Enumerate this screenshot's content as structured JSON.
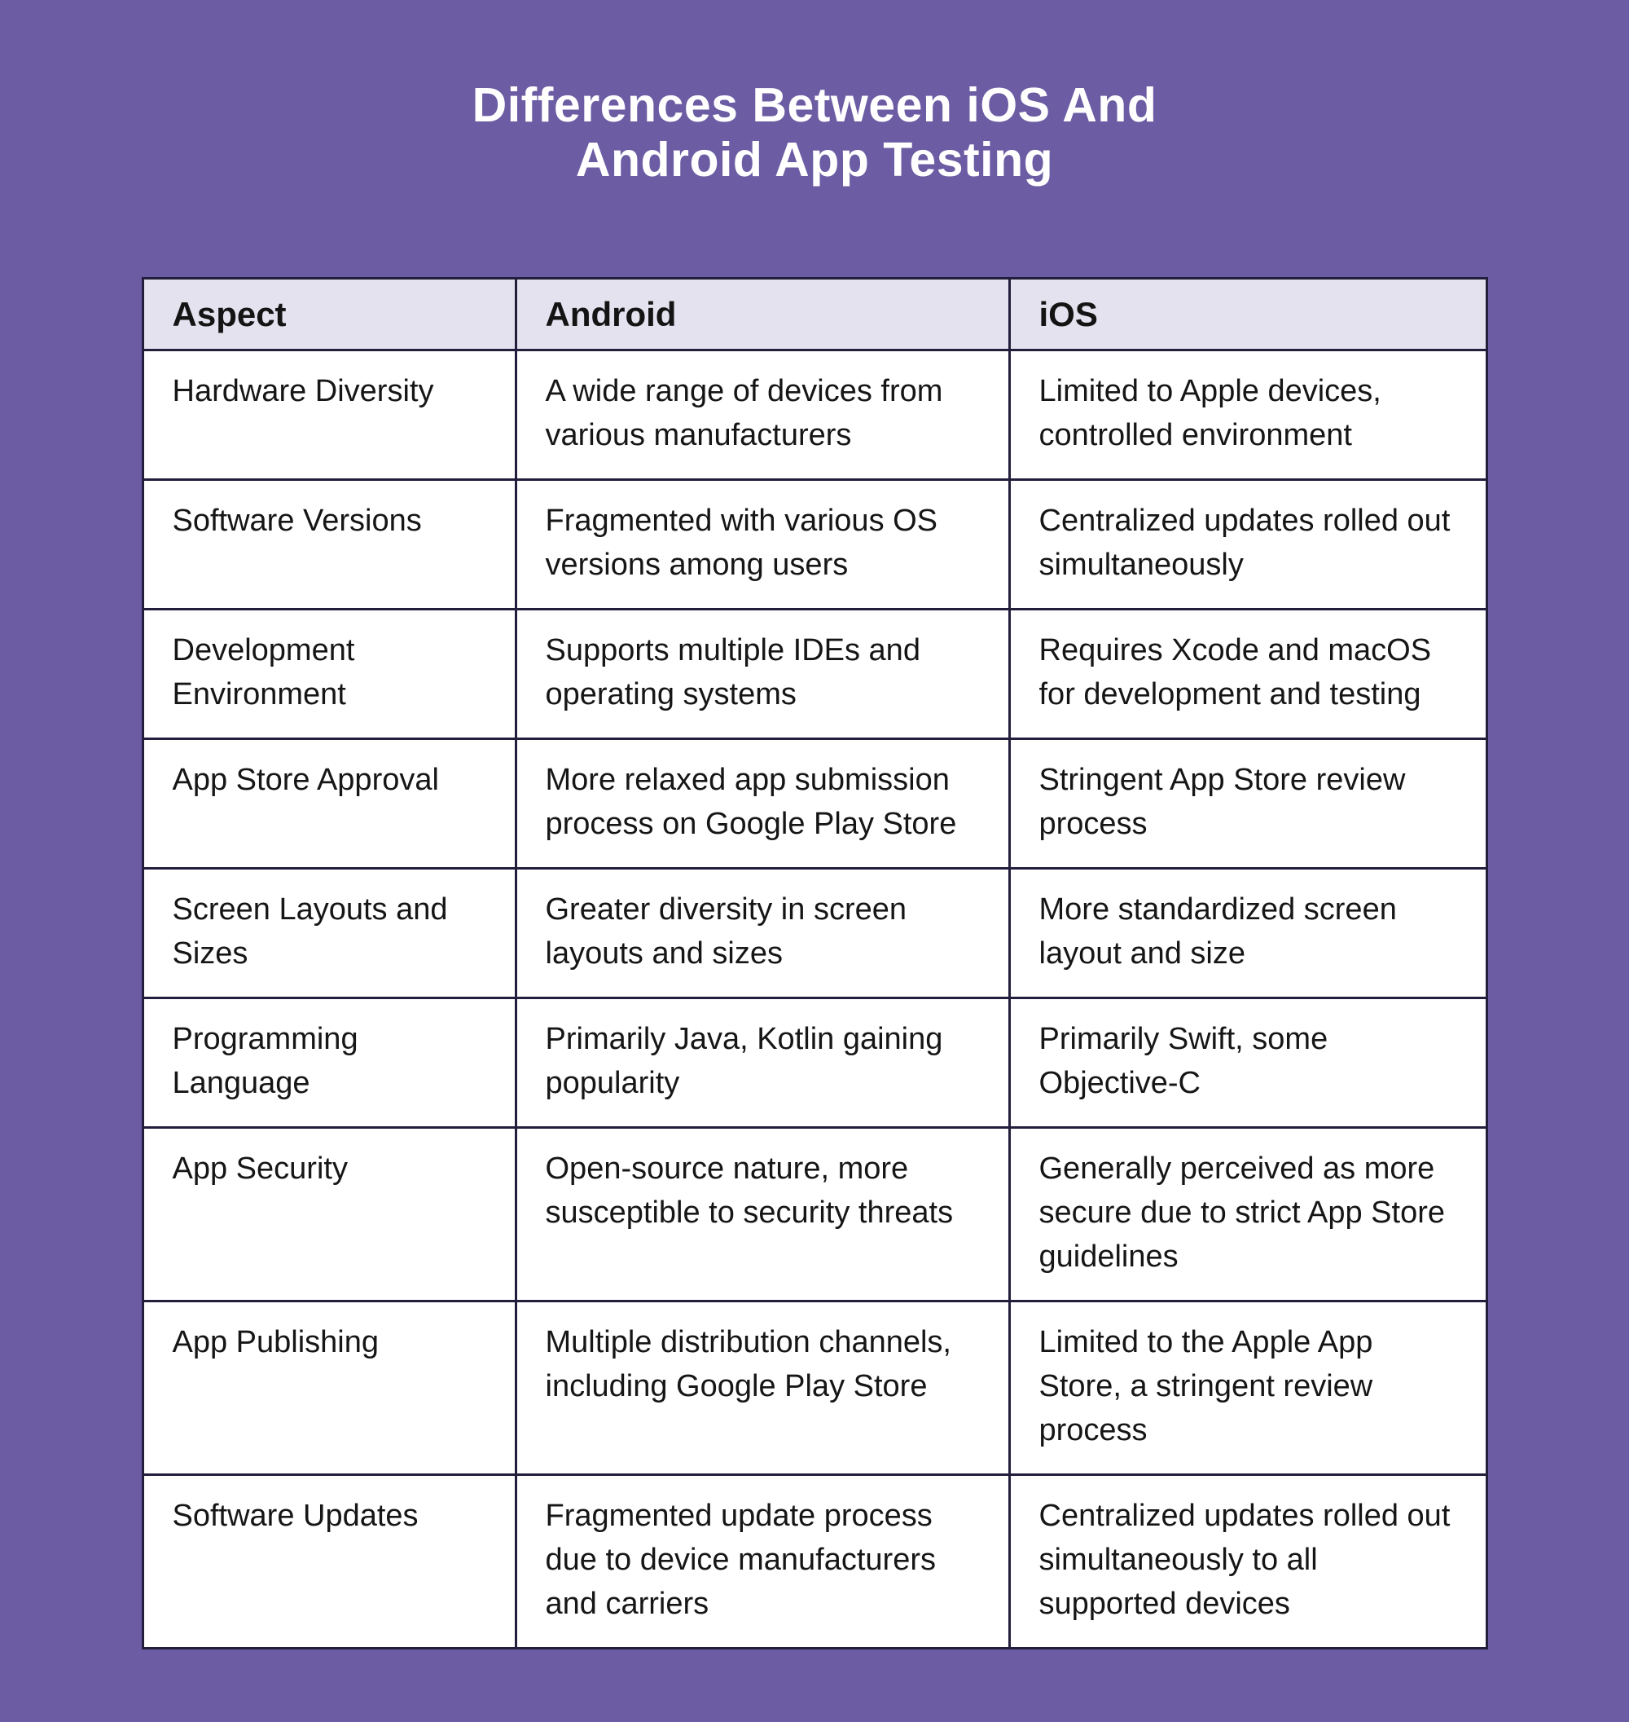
{
  "title": "Differences Between iOS And\nAndroid App Testing",
  "colors": {
    "page_background": "#6B5CA3",
    "title_text": "#FFFFFF",
    "table_header_background": "#E4E2EE",
    "table_body_background": "#FFFFFF",
    "table_border": "#221E3C",
    "table_text": "#161616"
  },
  "table": {
    "headers": [
      "Aspect",
      "Android",
      "iOS"
    ],
    "rows": [
      {
        "aspect": "Hardware Diversity",
        "android": "A wide range of devices from\nvarious manufacturers",
        "ios": "Limited to Apple devices,\ncontrolled environment"
      },
      {
        "aspect": "Software Versions",
        "android": "Fragmented with various OS\nversions among users",
        "ios": "Centralized updates rolled out\nsimultaneously"
      },
      {
        "aspect": "Development\nEnvironment",
        "android": "Supports multiple IDEs and\noperating systems",
        "ios": "Requires Xcode and macOS\nfor development and testing"
      },
      {
        "aspect": "App Store Approval",
        "android": "More relaxed app submission\nprocess on Google Play Store",
        "ios": "Stringent App Store review\nprocess"
      },
      {
        "aspect": "Screen Layouts and\nSizes",
        "android": "Greater diversity in screen\nlayouts and sizes",
        "ios": "More standardized screen\nlayout and size"
      },
      {
        "aspect": "Programming\nLanguage",
        "android": "Primarily Java, Kotlin gaining\npopularity",
        "ios": "Primarily Swift, some\nObjective-C"
      },
      {
        "aspect": "App Security",
        "android": "Open-source nature, more\nsusceptible to security threats",
        "ios": "Generally perceived as more\nsecure due to strict App Store\nguidelines"
      },
      {
        "aspect": "App Publishing",
        "android": "Multiple distribution channels,\nincluding Google Play Store",
        "ios": "Limited to the Apple App\nStore, a stringent review\nprocess"
      },
      {
        "aspect": "Software Updates",
        "android": "Fragmented update process\ndue to device manufacturers\nand carriers",
        "ios": "Centralized updates rolled out\nsimultaneously to all\nsupported devices"
      }
    ]
  },
  "chart_data": {
    "type": "table",
    "title": "Differences Between iOS And Android App Testing",
    "columns": [
      "Aspect",
      "Android",
      "iOS"
    ],
    "rows": [
      [
        "Hardware Diversity",
        "A wide range of devices from various manufacturers",
        "Limited to Apple devices, controlled environment"
      ],
      [
        "Software Versions",
        "Fragmented with various OS versions among users",
        "Centralized updates rolled out simultaneously"
      ],
      [
        "Development Environment",
        "Supports multiple IDEs and operating systems",
        "Requires Xcode and macOS for development and testing"
      ],
      [
        "App Store Approval",
        "More relaxed app submission process on Google Play Store",
        "Stringent App Store review process"
      ],
      [
        "Screen Layouts and Sizes",
        "Greater diversity in screen layouts and sizes",
        "More standardized screen layout and size"
      ],
      [
        "Programming Language",
        "Primarily Java, Kotlin gaining popularity",
        "Primarily Swift, some Objective-C"
      ],
      [
        "App Security",
        "Open-source nature, more susceptible to security threats",
        "Generally perceived as more secure due to strict App Store guidelines"
      ],
      [
        "App Publishing",
        "Multiple distribution channels, including Google Play Store",
        "Limited to the Apple App Store, a stringent review process"
      ],
      [
        "Software Updates",
        "Fragmented update process due to device manufacturers and carriers",
        "Centralized updates rolled out simultaneously to all supported devices"
      ]
    ]
  }
}
